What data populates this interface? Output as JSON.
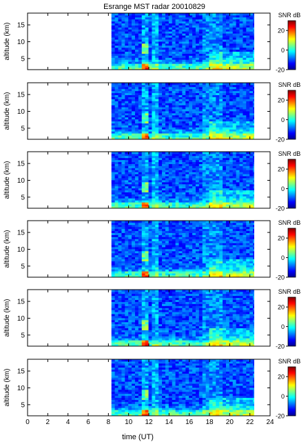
{
  "figure": {
    "title": "Esrange MST radar 20010829",
    "xlabel": "time (UT)"
  },
  "chart_data": [
    {
      "type": "heatmap",
      "panel": 1,
      "ylabel": "altitude (km)",
      "colorbar_label": "SNR dB",
      "x": {
        "range": [
          0,
          24
        ],
        "ticks": [
          0,
          2,
          4,
          6,
          8,
          10,
          12,
          14,
          16,
          18,
          20,
          22,
          24
        ],
        "data_start": 8.3,
        "data_end": 22.4
      },
      "y": {
        "range": [
          1.7,
          18.5
        ],
        "ticks": [
          5,
          10,
          15
        ]
      },
      "colorbar": {
        "range": [
          -20,
          30
        ],
        "ticks": [
          -20,
          0,
          20
        ]
      },
      "colormap": "jet",
      "grid": false
    },
    {
      "type": "heatmap",
      "panel": 2,
      "ylabel": "altitude (km)",
      "colorbar_label": "SNR dB",
      "x": {
        "range": [
          0,
          24
        ],
        "ticks": [
          0,
          2,
          4,
          6,
          8,
          10,
          12,
          14,
          16,
          18,
          20,
          22,
          24
        ],
        "data_start": 8.3,
        "data_end": 22.4
      },
      "y": {
        "range": [
          1.7,
          18.5
        ],
        "ticks": [
          5,
          10,
          15
        ]
      },
      "colorbar": {
        "range": [
          -20,
          30
        ],
        "ticks": [
          -20,
          0,
          20
        ]
      },
      "colormap": "jet",
      "grid": false
    },
    {
      "type": "heatmap",
      "panel": 3,
      "ylabel": "altitude (km)",
      "colorbar_label": "SNR dB",
      "x": {
        "range": [
          0,
          24
        ],
        "ticks": [
          0,
          2,
          4,
          6,
          8,
          10,
          12,
          14,
          16,
          18,
          20,
          22,
          24
        ],
        "data_start": 8.3,
        "data_end": 22.4
      },
      "y": {
        "range": [
          1.7,
          18.5
        ],
        "ticks": [
          5,
          10,
          15
        ]
      },
      "colorbar": {
        "range": [
          -20,
          30
        ],
        "ticks": [
          -20,
          0,
          20
        ]
      },
      "colormap": "jet",
      "grid": false
    },
    {
      "type": "heatmap",
      "panel": 4,
      "ylabel": "altitude (km)",
      "colorbar_label": "SNR dB",
      "x": {
        "range": [
          0,
          24
        ],
        "ticks": [
          0,
          2,
          4,
          6,
          8,
          10,
          12,
          14,
          16,
          18,
          20,
          22,
          24
        ],
        "data_start": 8.3,
        "data_end": 22.4
      },
      "y": {
        "range": [
          1.7,
          18.5
        ],
        "ticks": [
          5,
          10,
          15
        ]
      },
      "colorbar": {
        "range": [
          -20,
          30
        ],
        "ticks": [
          -20,
          0,
          20
        ]
      },
      "colormap": "jet",
      "grid": false
    },
    {
      "type": "heatmap",
      "panel": 5,
      "ylabel": "altitude (km)",
      "colorbar_label": "SNR dB",
      "x": {
        "range": [
          0,
          24
        ],
        "ticks": [
          0,
          2,
          4,
          6,
          8,
          10,
          12,
          14,
          16,
          18,
          20,
          22,
          24
        ],
        "data_start": 8.3,
        "data_end": 22.4
      },
      "y": {
        "range": [
          1.7,
          18.5
        ],
        "ticks": [
          5,
          10,
          15
        ]
      },
      "colorbar": {
        "range": [
          -20,
          30
        ],
        "ticks": [
          -20,
          0,
          20
        ]
      },
      "colormap": "jet",
      "grid": false
    },
    {
      "type": "heatmap",
      "panel": 6,
      "ylabel": "altitude (km)",
      "colorbar_label": "SNR dB",
      "x": {
        "range": [
          0,
          24
        ],
        "ticks": [
          0,
          2,
          4,
          6,
          8,
          10,
          12,
          14,
          16,
          18,
          20,
          22,
          24
        ],
        "data_start": 8.3,
        "data_end": 22.4
      },
      "y": {
        "range": [
          1.7,
          18.5
        ],
        "ticks": [
          5,
          10,
          15
        ]
      },
      "colorbar": {
        "range": [
          -20,
          30
        ],
        "ticks": [
          -20,
          0,
          20
        ]
      },
      "colormap": "jet",
      "grid": false
    }
  ]
}
